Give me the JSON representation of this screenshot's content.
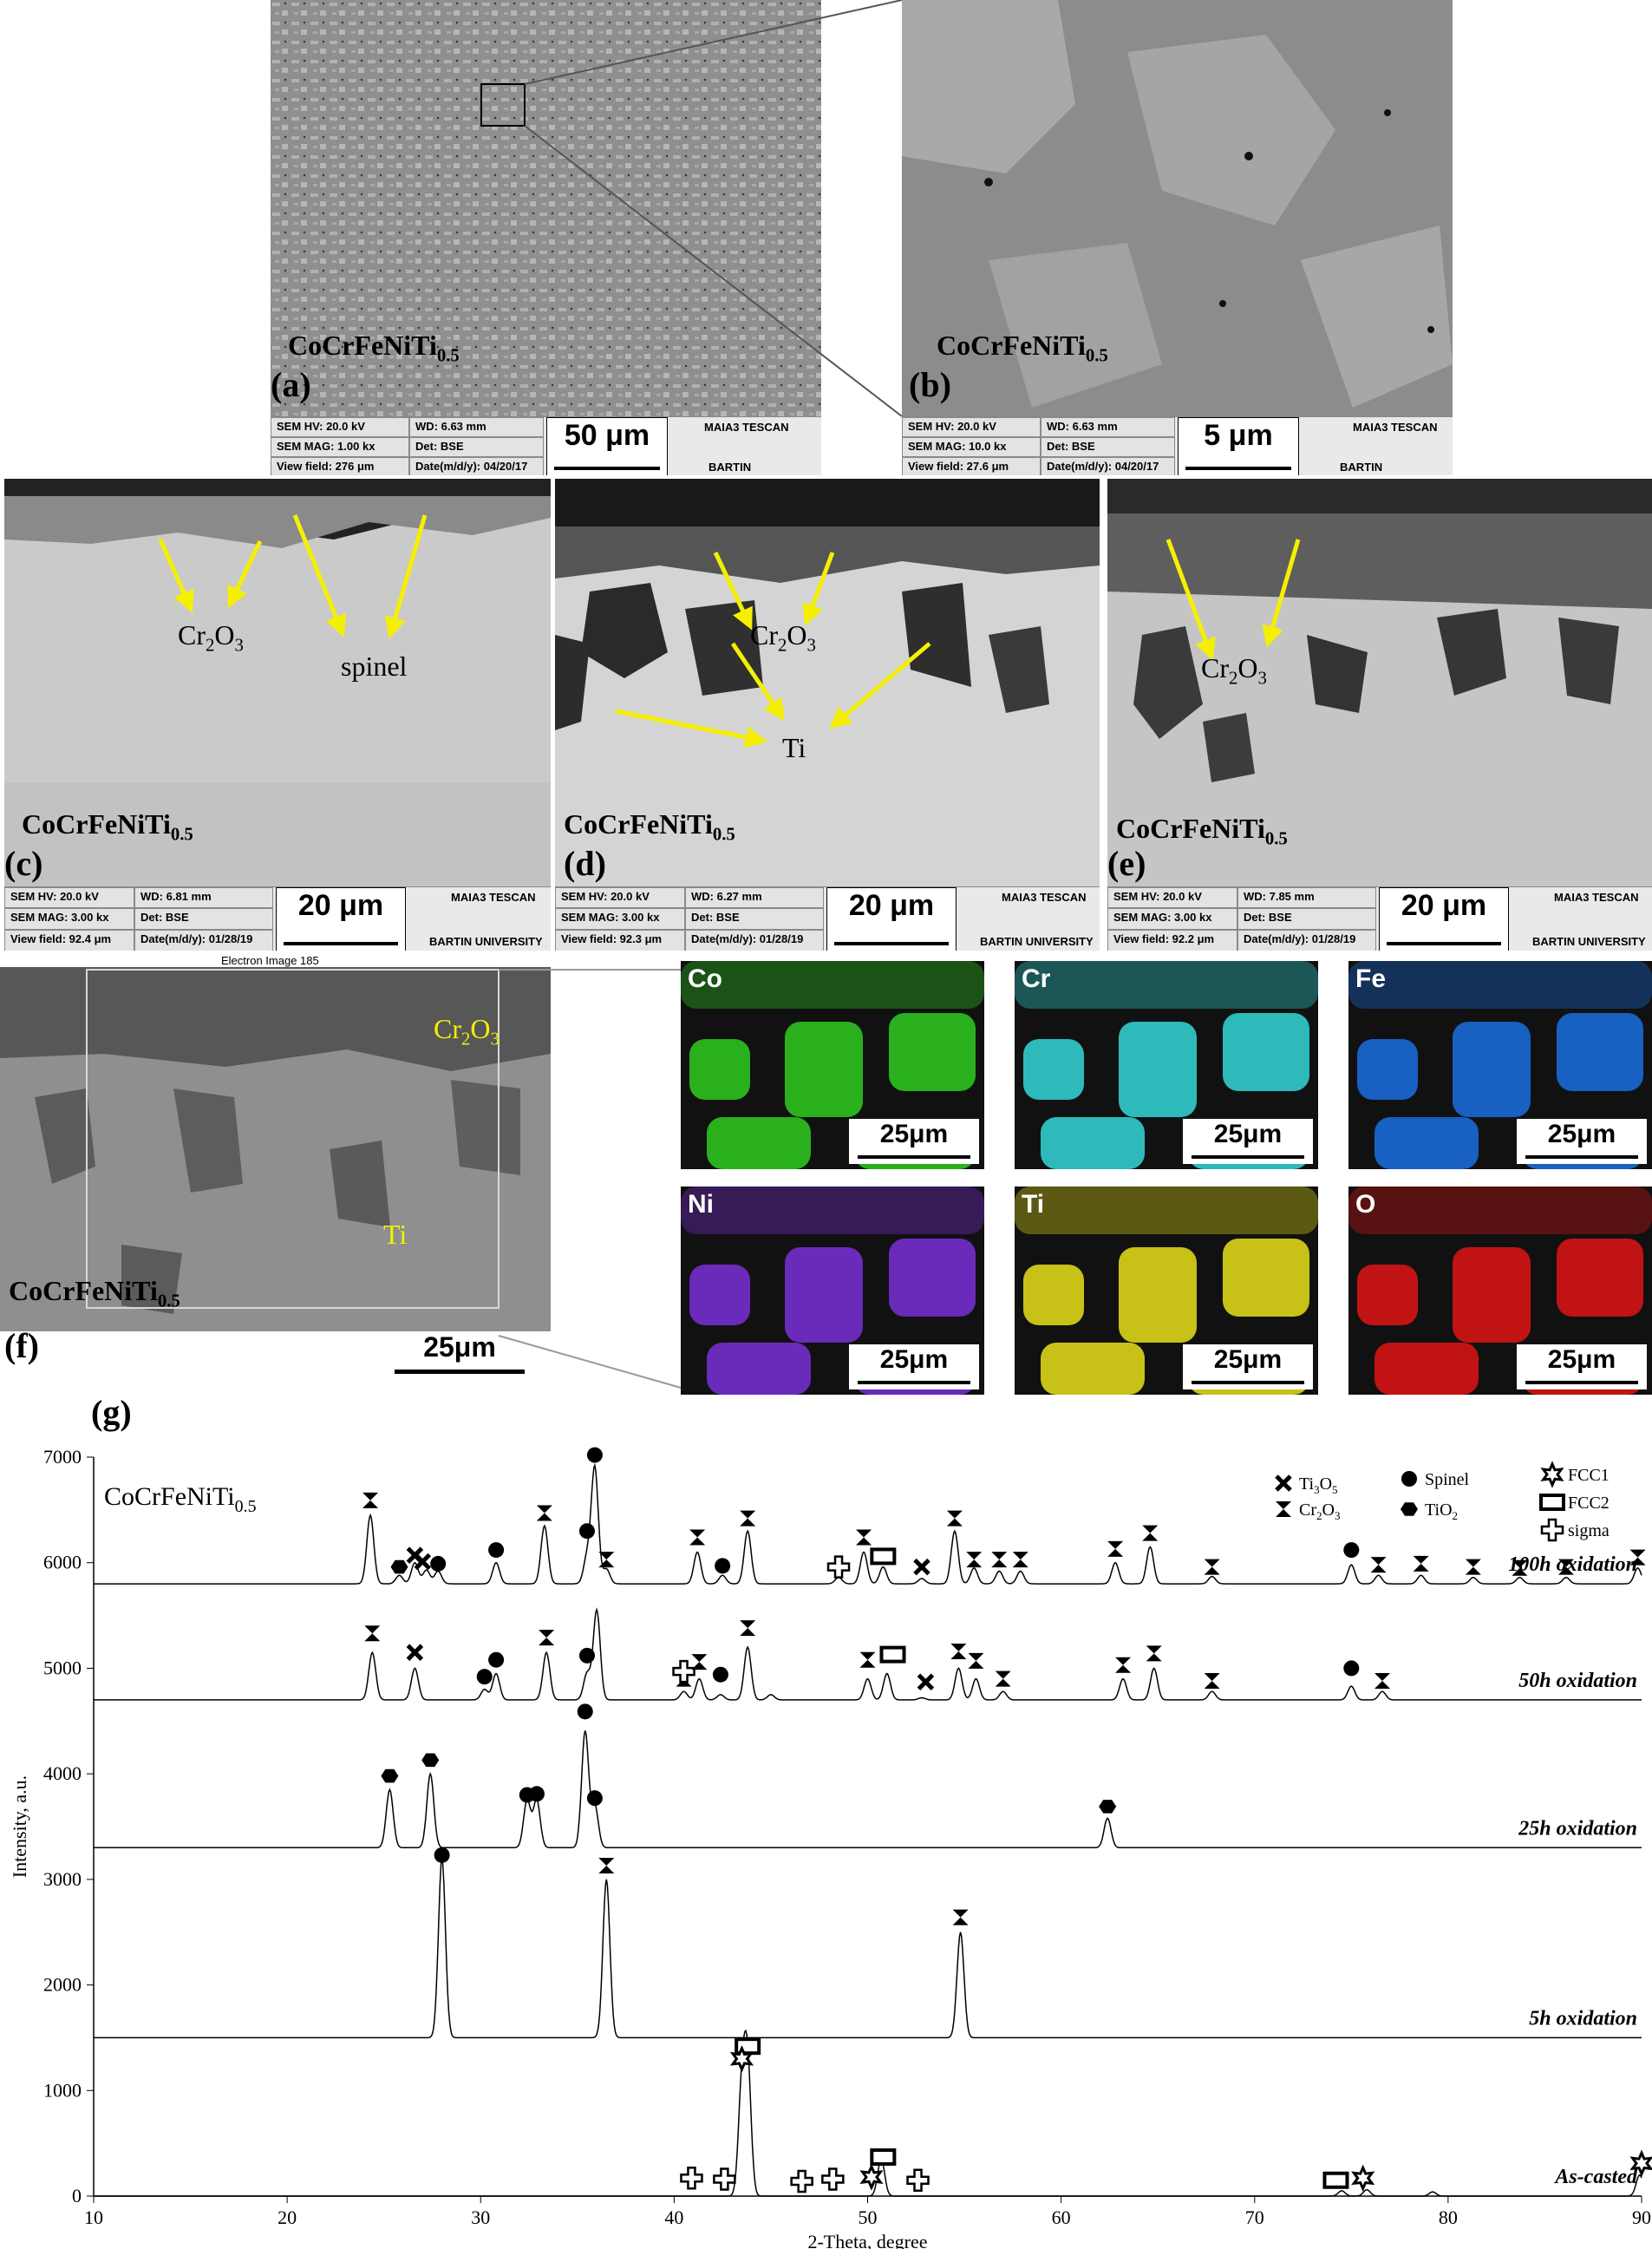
{
  "panels": {
    "a": {
      "label": "(a)",
      "alloy": "CoCrFeNiTi",
      "alloy_sub": "0.5",
      "info": {
        "hv": "SEM HV: 20.0 kV",
        "wd": "WD: 6.63 mm",
        "mag": "SEM MAG: 1.00 kx",
        "det": "Det: BSE",
        "vf": "View field: 276 μm",
        "date": "Date(m/d/y): 04/20/17",
        "brand": "MAIA3 TESCAN",
        "univ": "BARTIN UNIVERSITY"
      },
      "scale": "50 μm"
    },
    "b": {
      "label": "(b)",
      "alloy": "CoCrFeNiTi",
      "alloy_sub": "0.5",
      "info": {
        "hv": "SEM HV: 20.0 kV",
        "wd": "WD: 6.63 mm",
        "mag": "SEM MAG: 10.0 kx",
        "det": "Det: BSE",
        "vf": "View field: 27.6 μm",
        "date": "Date(m/d/y): 04/20/17",
        "brand": "MAIA3 TESCAN",
        "univ": "BARTIN UNIVERSITY"
      },
      "scale": "5 μm"
    },
    "c": {
      "label": "(c)",
      "alloy": "CoCrFeNiTi",
      "alloy_sub": "0.5",
      "anno1_main": "Cr",
      "anno1_sub": "2",
      "anno1_tail": "O",
      "anno1_sub2": "3",
      "anno2": "spinel",
      "info": {
        "hv": "SEM HV: 20.0 kV",
        "wd": "WD: 6.81 mm",
        "mag": "SEM MAG: 3.00 kx",
        "det": "Det: BSE",
        "vf": "View field: 92.4 μm",
        "date": "Date(m/d/y): 01/28/19",
        "brand": "MAIA3 TESCAN",
        "univ": "BARTIN UNIVERSITY"
      },
      "scale": "20 μm"
    },
    "d": {
      "label": "(d)",
      "alloy": "CoCrFeNiTi",
      "alloy_sub": "0.5",
      "anno1_main": "Cr",
      "anno1_sub": "2",
      "anno1_tail": "O",
      "anno1_sub2": "3",
      "anno2": "Ti",
      "info": {
        "hv": "SEM HV: 20.0 kV",
        "wd": "WD: 6.27 mm",
        "mag": "SEM MAG: 3.00 kx",
        "det": "Det: BSE",
        "vf": "View field: 92.3 μm",
        "date": "Date(m/d/y): 01/28/19",
        "brand": "MAIA3 TESCAN",
        "univ": "BARTIN UNIVERSITY"
      },
      "scale": "20 μm"
    },
    "e": {
      "label": "(e)",
      "alloy": "CoCrFeNiTi",
      "alloy_sub": "0.5",
      "anno1_main": "Cr",
      "anno1_sub": "2",
      "anno1_tail": "O",
      "anno1_sub2": "3",
      "info": {
        "hv": "SEM HV: 20.0 kV",
        "wd": "WD: 7.85 mm",
        "mag": "SEM MAG: 3.00 kx",
        "det": "Det: BSE",
        "vf": "View field: 92.2 μm",
        "date": "Date(m/d/y): 01/28/19",
        "brand": "MAIA3 TESCAN",
        "univ": "BARTIN UNIVERSITY"
      },
      "scale": "20 μm"
    },
    "f": {
      "label": "(f)",
      "alloy": "CoCrFeNiTi",
      "alloy_sub": "0.5",
      "header": "Electron Image 185",
      "anno1_main": "Cr",
      "anno1_sub": "2",
      "anno1_tail": "O",
      "anno1_sub2": "3",
      "anno2": "Ti",
      "scale": "25μm"
    }
  },
  "maps": [
    {
      "element": "Co",
      "scale": "25μm",
      "color": "#2ecc1f"
    },
    {
      "element": "Cr",
      "scale": "25μm",
      "color": "#34d8d8"
    },
    {
      "element": "Fe",
      "scale": "25μm",
      "color": "#1a6fe0"
    },
    {
      "element": "Ni",
      "scale": "25μm",
      "color": "#7a2fd8"
    },
    {
      "element": "Ti",
      "scale": "25μm",
      "color": "#e8e01a"
    },
    {
      "element": "O",
      "scale": "25μm",
      "color": "#e01414"
    }
  ],
  "chart_data": {
    "label": "(g)",
    "type": "line",
    "title": "CoCrFeNiTi",
    "title_sub": "0.5",
    "xlabel": "2-Theta, degree",
    "ylabel": "Intensity, a.u.",
    "xlim": [
      10,
      90
    ],
    "ylim": [
      0,
      7000
    ],
    "xticks": [
      10,
      20,
      30,
      40,
      50,
      60,
      70,
      80,
      90
    ],
    "yticks": [
      0,
      1000,
      2000,
      3000,
      4000,
      5000,
      6000,
      7000
    ],
    "legend": [
      {
        "marker": "cross",
        "text": "Ti",
        "sub1": "3",
        "mid": "O",
        "sub2": "5"
      },
      {
        "marker": "hourglass",
        "text": "Cr",
        "sub1": "2",
        "mid": "O",
        "sub2": "3"
      },
      {
        "marker": "circle",
        "text": "Spinel"
      },
      {
        "marker": "hexagon",
        "text": "TiO",
        "sub1": "2"
      },
      {
        "marker": "star",
        "text": "FCC1"
      },
      {
        "marker": "rect",
        "text": "FCC2"
      },
      {
        "marker": "plus",
        "text": "sigma"
      }
    ],
    "series": [
      {
        "name": "100h oxidation",
        "baseline": 5800,
        "peaks": [
          [
            24.3,
            6450
          ],
          [
            25.8,
            5880
          ],
          [
            26.6,
            6000
          ],
          [
            27.2,
            5930
          ],
          [
            27.8,
            5920
          ],
          [
            30.8,
            6000
          ],
          [
            33.3,
            6350
          ],
          [
            35.5,
            6050
          ],
          [
            35.9,
            6900
          ],
          [
            36.5,
            5940
          ],
          [
            41.2,
            6100
          ],
          [
            42.5,
            5880
          ],
          [
            43.8,
            6300
          ],
          [
            48.5,
            5860
          ],
          [
            49.8,
            6100
          ],
          [
            50.8,
            5960
          ],
          [
            52.8,
            5850
          ],
          [
            54.5,
            6300
          ],
          [
            55.5,
            5950
          ],
          [
            56.8,
            5920
          ],
          [
            57.9,
            5920
          ],
          [
            62.8,
            6000
          ],
          [
            64.6,
            6150
          ],
          [
            67.8,
            5870
          ],
          [
            75.0,
            5980
          ],
          [
            76.4,
            5880
          ],
          [
            78.6,
            5880
          ],
          [
            81.3,
            5860
          ],
          [
            83.7,
            5860
          ],
          [
            86.1,
            5860
          ],
          [
            89.8,
            5950
          ]
        ],
        "markers": [
          [
            "hourglass",
            24.3,
            6590
          ],
          [
            "hexagon",
            25.8,
            5960
          ],
          [
            "cross",
            26.6,
            6070
          ],
          [
            "cross",
            27.0,
            6010
          ],
          [
            "circle",
            27.8,
            5990
          ],
          [
            "circle",
            30.8,
            6120
          ],
          [
            "hourglass",
            33.3,
            6470
          ],
          [
            "circle",
            35.5,
            6300
          ],
          [
            "circle",
            35.9,
            7020
          ],
          [
            "hourglass",
            36.5,
            6030
          ],
          [
            "hourglass",
            41.2,
            6240
          ],
          [
            "circle",
            42.5,
            5970
          ],
          [
            "hourglass",
            43.8,
            6420
          ],
          [
            "plus",
            48.5,
            5960
          ],
          [
            "hourglass",
            49.8,
            6240
          ],
          [
            "rect",
            50.8,
            6060
          ],
          [
            "cross",
            52.8,
            5960
          ],
          [
            "hourglass",
            54.5,
            6420
          ],
          [
            "hourglass",
            55.5,
            6030
          ],
          [
            "hourglass",
            56.8,
            6030
          ],
          [
            "hourglass",
            57.9,
            6030
          ],
          [
            "hourglass",
            62.8,
            6130
          ],
          [
            "hourglass",
            64.6,
            6280
          ],
          [
            "hourglass",
            67.8,
            5960
          ],
          [
            "circle",
            75.0,
            6120
          ],
          [
            "hourglass",
            76.4,
            5980
          ],
          [
            "hourglass",
            78.6,
            5990
          ],
          [
            "hourglass",
            81.3,
            5960
          ],
          [
            "hourglass",
            83.7,
            5950
          ],
          [
            "hourglass",
            86.1,
            5960
          ],
          [
            "hourglass",
            89.8,
            6050
          ]
        ]
      },
      {
        "name": "50h oxidation",
        "baseline": 4700,
        "peaks": [
          [
            24.4,
            5150
          ],
          [
            26.6,
            5000
          ],
          [
            30.2,
            4800
          ],
          [
            30.8,
            4950
          ],
          [
            33.4,
            5150
          ],
          [
            35.5,
            4950
          ],
          [
            36.0,
            5550
          ],
          [
            40.5,
            4780
          ],
          [
            41.3,
            4900
          ],
          [
            42.4,
            4750
          ],
          [
            43.8,
            5200
          ],
          [
            45.0,
            4750
          ],
          [
            50.0,
            4900
          ],
          [
            51.0,
            4950
          ],
          [
            52.8,
            4720
          ],
          [
            54.7,
            5000
          ],
          [
            55.6,
            4900
          ],
          [
            57.0,
            4780
          ],
          [
            63.2,
            4900
          ],
          [
            64.8,
            5000
          ],
          [
            67.8,
            4780
          ],
          [
            75.0,
            4830
          ],
          [
            76.6,
            4780
          ]
        ],
        "markers": [
          [
            "hourglass",
            24.4,
            5330
          ],
          [
            "cross",
            26.6,
            5150
          ],
          [
            "circle",
            30.2,
            4920
          ],
          [
            "circle",
            30.8,
            5080
          ],
          [
            "hourglass",
            33.4,
            5290
          ],
          [
            "circle",
            35.5,
            5120
          ],
          [
            "hourglass",
            40.5,
            4900
          ],
          [
            "plus",
            40.5,
            4970
          ],
          [
            "hourglass",
            41.3,
            5060
          ],
          [
            "circle",
            42.4,
            4940
          ],
          [
            "hourglass",
            43.8,
            5380
          ],
          [
            "hourglass",
            50.0,
            5080
          ],
          [
            "rect",
            51.3,
            5130
          ],
          [
            "cross",
            53.0,
            4870
          ],
          [
            "hourglass",
            54.7,
            5160
          ],
          [
            "hourglass",
            55.6,
            5070
          ],
          [
            "hourglass",
            57.0,
            4900
          ],
          [
            "hourglass",
            63.2,
            5030
          ],
          [
            "hourglass",
            64.8,
            5140
          ],
          [
            "hourglass",
            67.8,
            4880
          ],
          [
            "circle",
            75.0,
            5000
          ],
          [
            "hourglass",
            76.6,
            4880
          ]
        ]
      },
      {
        "name": "25h oxidation",
        "baseline": 3300,
        "peaks": [
          [
            25.3,
            3850
          ],
          [
            27.4,
            4000
          ],
          [
            32.4,
            3750
          ],
          [
            32.9,
            3750
          ],
          [
            35.4,
            4400
          ],
          [
            35.9,
            3700
          ],
          [
            62.4,
            3580
          ]
        ],
        "markers": [
          [
            "hexagon",
            25.3,
            3980
          ],
          [
            "hexagon",
            27.4,
            4130
          ],
          [
            "circle",
            32.4,
            3800
          ],
          [
            "circle",
            32.9,
            3810
          ],
          [
            "circle",
            35.4,
            4590
          ],
          [
            "circle",
            35.9,
            3770
          ],
          [
            "hexagon",
            62.4,
            3690
          ]
        ]
      },
      {
        "name": "5h oxidation",
        "baseline": 1500,
        "peaks": [
          [
            28.0,
            3200
          ],
          [
            36.5,
            3000
          ],
          [
            54.8,
            2500
          ]
        ],
        "markers": [
          [
            "circle",
            28.0,
            3230
          ],
          [
            "hourglass",
            36.5,
            3130
          ],
          [
            "hourglass",
            54.8,
            2640
          ]
        ]
      },
      {
        "name": "As-casted",
        "baseline": 0,
        "peaks": [
          [
            43.5,
            1000
          ],
          [
            43.8,
            1200
          ],
          [
            50.7,
            350
          ],
          [
            74.5,
            50
          ],
          [
            75.8,
            60
          ],
          [
            79.2,
            40
          ],
          [
            89.9,
            200
          ]
        ],
        "markers": [
          [
            "rect",
            43.8,
            1420
          ],
          [
            "star",
            43.5,
            1300
          ],
          [
            "plus",
            40.9,
            170
          ],
          [
            "plus",
            42.6,
            160
          ],
          [
            "plus",
            46.6,
            140
          ],
          [
            "plus",
            48.2,
            160
          ],
          [
            "star",
            50.2,
            180
          ],
          [
            "rect",
            50.8,
            370
          ],
          [
            "plus",
            52.6,
            150
          ],
          [
            "rect",
            74.2,
            150
          ],
          [
            "star",
            75.6,
            170
          ],
          [
            "star",
            90.0,
            310
          ]
        ]
      }
    ]
  }
}
